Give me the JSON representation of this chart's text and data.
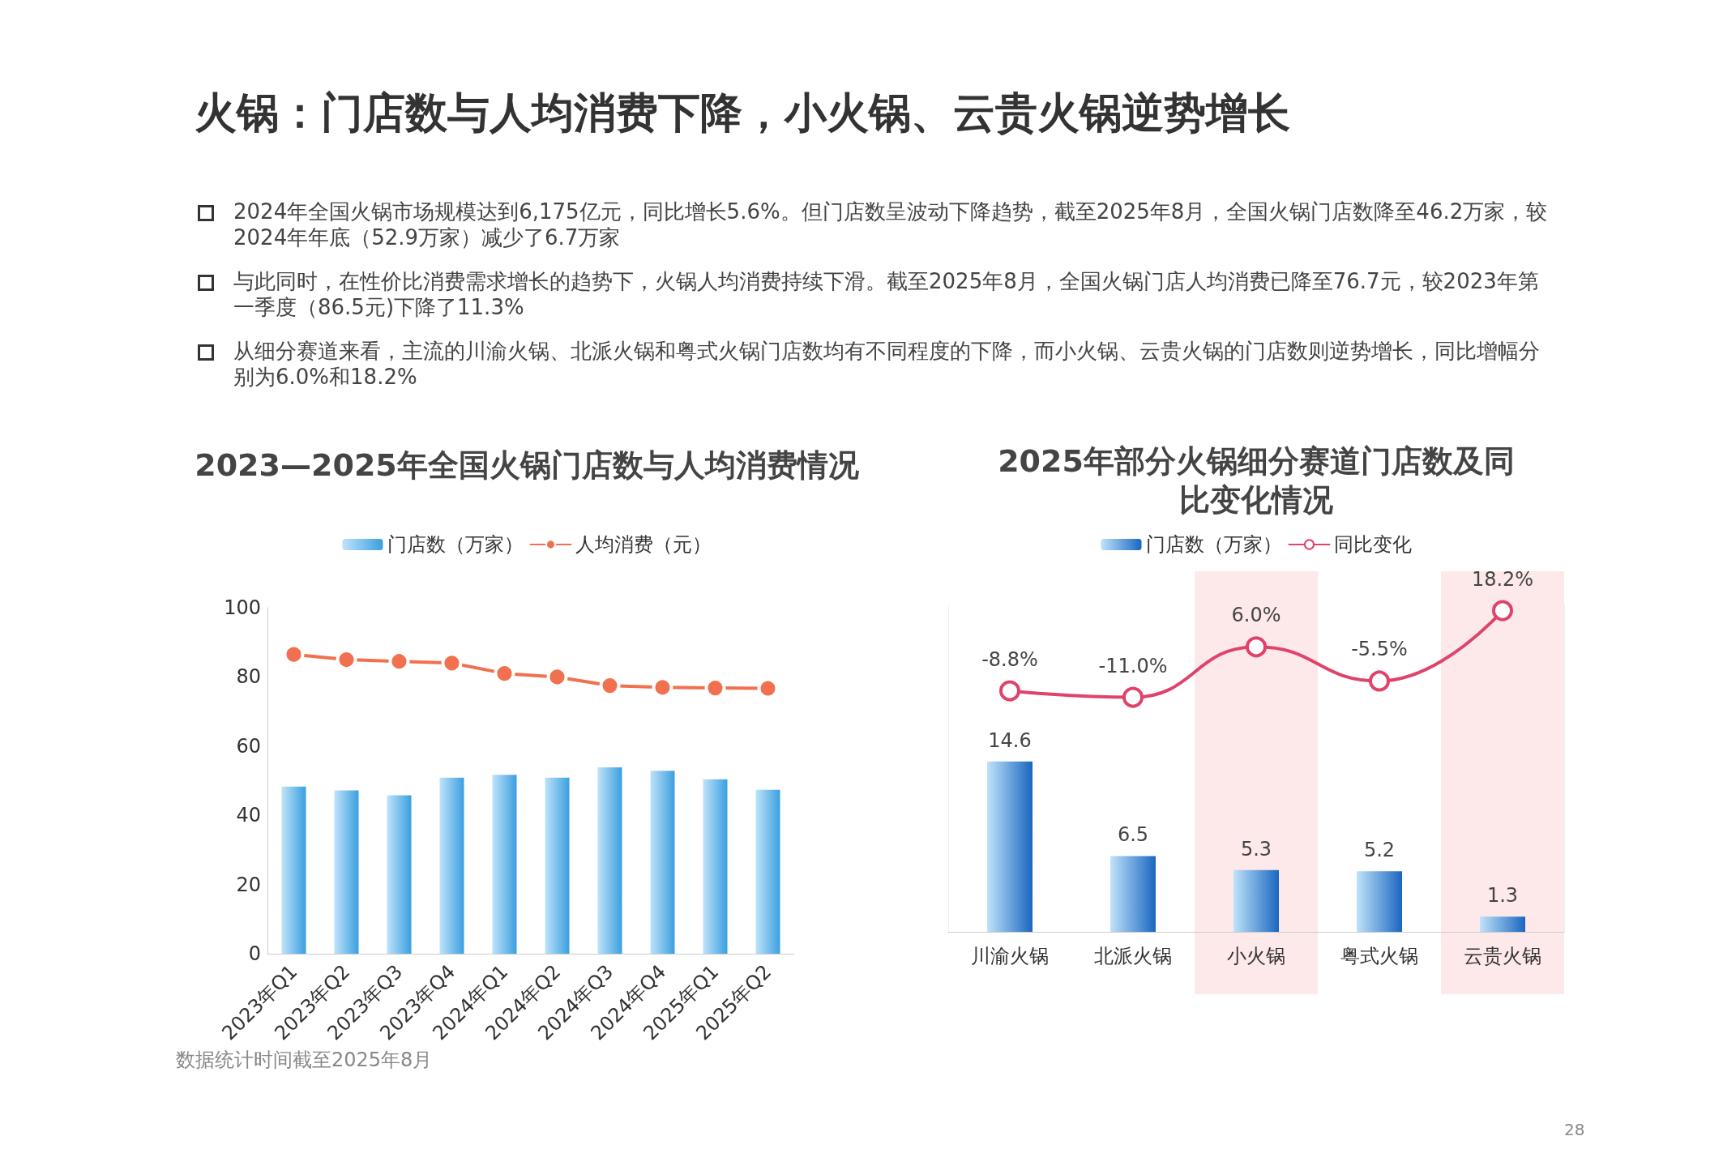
{
  "chart_data": [
    {
      "type": "other",
      "title": "火锅：门店数与人均消费下降，小火锅、云贵火锅逆势增长",
      "annotations": [
        "2024年全国火锅市场规模达到6,175亿元，同比增长5.6%。但门店数呈波动下降趋势，截至2025年8月，全国火锅门店数降至46.2万家，较2024年年底（52.9万家）减少了6.7万家",
        "与此同时，在性价比消费需求增长的趋势下，火锅人均消费持续下滑。截至2025年8月，全国火锅门店人均消费已降至76.7元，较2023年第一季度（86.5元)下降了11.3%",
        "从细分赛道来看，主流的川渝火锅、北派火锅和粤式火锅门店数均有不同程度的下降，而小火锅、云贵火锅的门店数则逆势增长，同比增幅分别为6.0%和18.2%",
        "28"
      ]
    },
    {
      "type": "bar",
      "title": "2023—2025年全国火锅门店数与人均消费情况",
      "categories": [
        "2023年Q1",
        "2023年Q2",
        "2023年Q3",
        "2023年Q4",
        "2024年Q1",
        "2024年Q2",
        "2024年Q3",
        "2024年Q4",
        "2025年Q1",
        "2025年Q2"
      ],
      "series": [
        {
          "name": "门店数（万家）",
          "color": "#3a9fe0",
          "values": [
            48.3,
            47.2,
            45.8,
            50.9,
            51.7,
            50.9,
            53.9,
            52.9,
            50.4,
            47.4
          ]
        },
        {
          "name": "人均消费（元）",
          "type": "line",
          "color": "#f07050",
          "values": [
            86.5,
            85.0,
            84.5,
            84.0,
            81.0,
            80.0,
            77.5,
            77.0,
            76.8,
            76.7
          ]
        }
      ],
      "ylim": [
        0,
        100
      ],
      "yticks": [
        0,
        20,
        40,
        60,
        80,
        100
      ],
      "grid": false,
      "legend": "top",
      "marker": "circle",
      "annotations": [
        "数据统计时间截至2025年8月"
      ]
    },
    {
      "type": "bar",
      "title": "2025年部分火锅细分赛道门店数及同比变化情况",
      "categories": [
        "川渝火锅",
        "北派火锅",
        "小火锅",
        "粤式火锅",
        "云贵火锅"
      ],
      "series": [
        {
          "name": "门店数（万家）",
          "color": "#1a66c0",
          "values": [
            14.6,
            6.5,
            5.3,
            5.2,
            1.3
          ],
          "data_labels": true
        },
        {
          "name": "同比变化",
          "type": "line",
          "axis": "y2",
          "color": "#e0436a",
          "values": [
            -8.8,
            -11.0,
            6.0,
            -5.5,
            18.2
          ],
          "value_labels": [
            "-8.8%",
            "-11.0%",
            "6.0%",
            "-5.5%",
            "18.2%"
          ]
        }
      ],
      "bands": [
        {
          "axis": "x",
          "from": "小火锅",
          "to": "小火锅",
          "color": "#fde8ea"
        },
        {
          "axis": "x",
          "from": "云贵火锅",
          "to": "云贵火锅",
          "color": "#fde8ea"
        }
      ],
      "ylim": [
        0,
        28
      ],
      "y2lim": [
        -90,
        20
      ],
      "grid": false,
      "legend": "top",
      "marker": "circle",
      "tick_labels": "x"
    }
  ]
}
